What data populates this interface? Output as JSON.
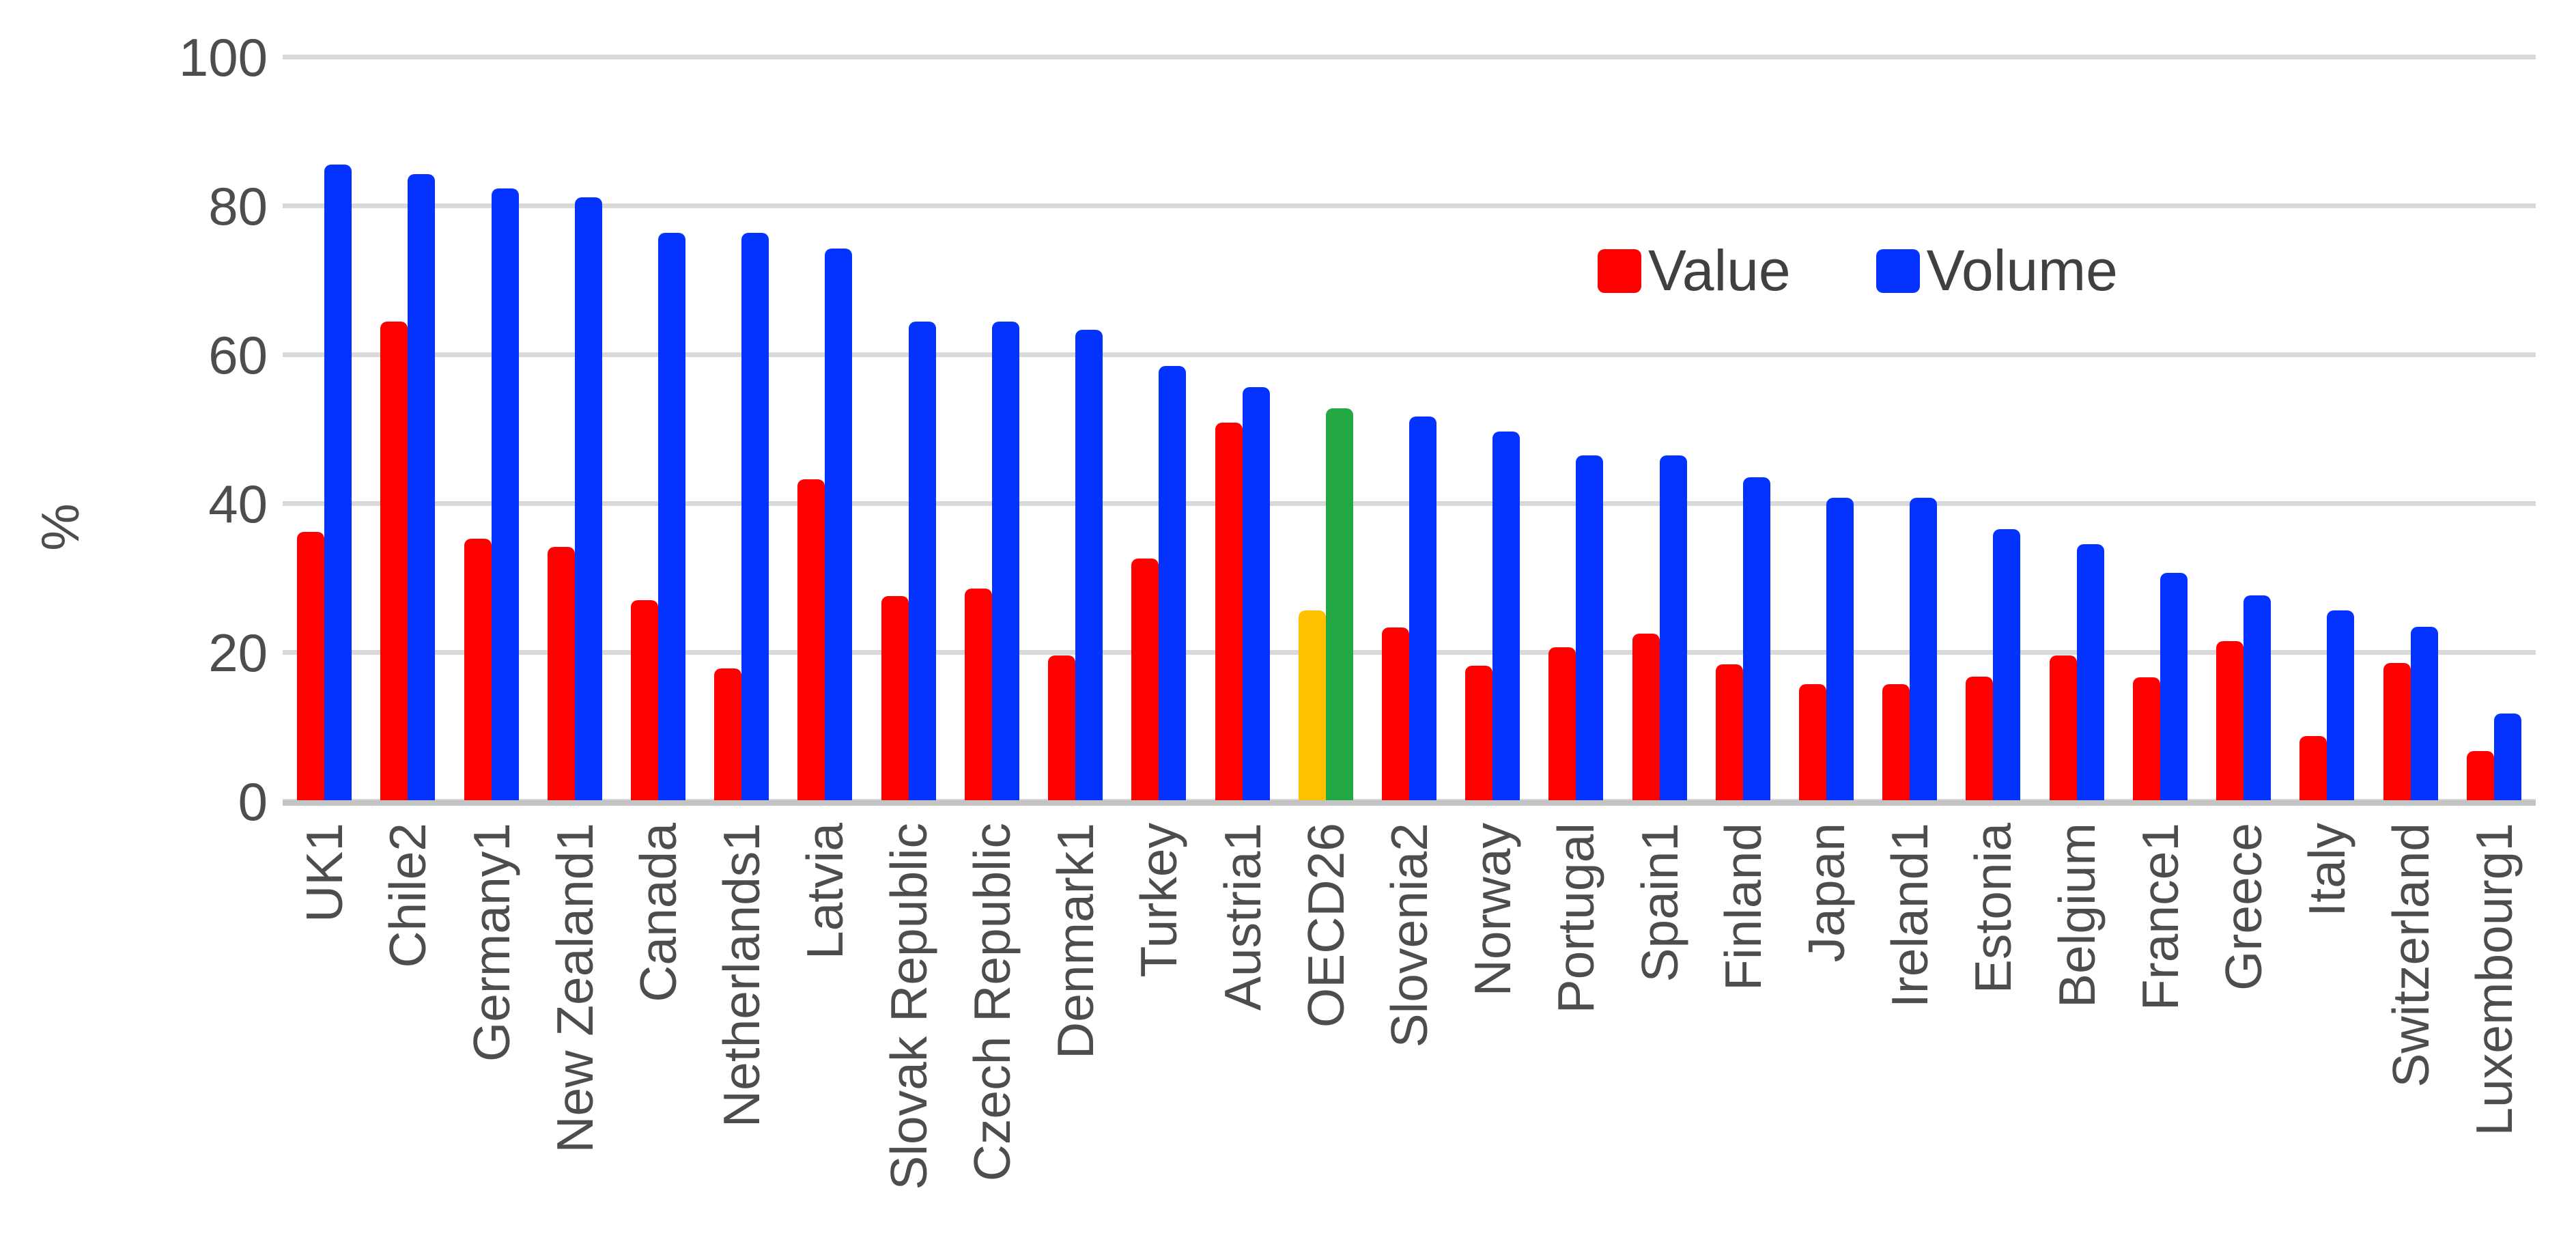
{
  "chart_data": {
    "type": "bar",
    "title": "",
    "xlabel": "",
    "ylabel": "%",
    "ylim": [
      0,
      100
    ],
    "yticks": [
      0,
      20,
      40,
      60,
      80,
      100
    ],
    "grid": true,
    "legend_position": "inside-upper-right",
    "categories": [
      "UK1",
      "Chile2",
      "Germany1",
      "New Zealand1",
      "Canada",
      "Netherlands1",
      "Latvia",
      "Slovak Republic",
      "Czech Republic",
      "Denmark1",
      "Turkey",
      "Austria1",
      "OECD26",
      "Slovenia2",
      "Norway",
      "Portugal",
      "Spain1",
      "Finland",
      "Japan",
      "Ireland1",
      "Estonia",
      "Belgium",
      "France1",
      "Greece",
      "Italy",
      "Switzerland",
      "Luxembourg1"
    ],
    "series": [
      {
        "name": "Value",
        "color": "#FF0000",
        "values": [
          36.2,
          64.5,
          35.3,
          34.2,
          27.1,
          17.9,
          43.3,
          27.6,
          28.6,
          19.6,
          32.7,
          50.9,
          25.7,
          23.4,
          18.3,
          20.7,
          22.6,
          18.4,
          15.8,
          15.8,
          16.8,
          19.6,
          16.7,
          21.6,
          8.8,
          18.6,
          6.8
        ]
      },
      {
        "name": "Volume",
        "color": "#0433FF",
        "values": [
          85.6,
          84.3,
          82.4,
          81.2,
          76.4,
          76.4,
          74.3,
          64.5,
          64.5,
          63.4,
          58.5,
          55.7,
          52.8,
          51.7,
          49.7,
          46.5,
          46.5,
          43.6,
          40.8,
          40.8,
          36.6,
          34.6,
          30.7,
          27.7,
          25.7,
          23.5,
          11.8
        ]
      }
    ],
    "highlight": {
      "category": "OECD26",
      "value_color": "#FFC000",
      "volume_color": "#22A844"
    }
  },
  "legend": {
    "items": [
      {
        "label": "Value",
        "color": "#FF0000"
      },
      {
        "label": "Volume",
        "color": "#0433FF"
      }
    ]
  },
  "axis": {
    "y_title": "%",
    "tick_labels": [
      "0",
      "20",
      "40",
      "60",
      "80",
      "100"
    ]
  },
  "colors": {
    "gridline": "#d9d9d9",
    "axis_line": "#c3c3c3",
    "tick_text": "#4d4d4d",
    "legend_text": "#404040",
    "background": "#ffffff"
  }
}
